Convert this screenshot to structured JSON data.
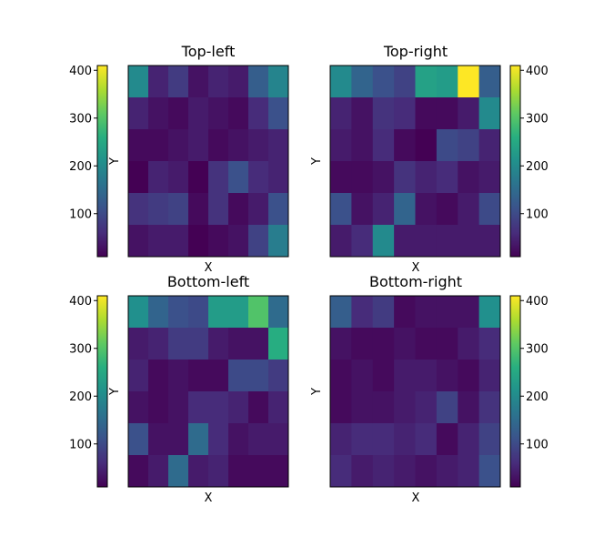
{
  "chart_data": [
    {
      "type": "heatmap",
      "title": "Top-left",
      "xlabel": "X",
      "ylabel": "Y",
      "colorbar_position": "left",
      "colormap": "viridis",
      "clim": [
        10,
        410
      ],
      "colorbar_ticks": [
        100,
        200,
        300,
        400
      ],
      "grid": false,
      "rows": [
        [
          200,
          50,
          80,
          30,
          50,
          40,
          130,
          190
        ],
        [
          50,
          30,
          20,
          40,
          30,
          20,
          60,
          110
        ],
        [
          20,
          20,
          30,
          40,
          20,
          30,
          40,
          50
        ],
        [
          10,
          50,
          40,
          5,
          70,
          110,
          60,
          50
        ],
        [
          70,
          80,
          90,
          20,
          70,
          20,
          40,
          110
        ],
        [
          30,
          40,
          40,
          10,
          20,
          30,
          90,
          180
        ]
      ]
    },
    {
      "type": "heatmap",
      "title": "Top-right",
      "xlabel": "X",
      "ylabel": "Y",
      "colorbar_position": "right",
      "colormap": "viridis",
      "clim": [
        10,
        410
      ],
      "colorbar_ticks": [
        100,
        200,
        300,
        400
      ],
      "grid": false,
      "rows": [
        [
          200,
          140,
          110,
          90,
          240,
          230,
          410,
          130
        ],
        [
          50,
          30,
          70,
          60,
          20,
          20,
          40,
          200
        ],
        [
          40,
          30,
          60,
          20,
          10,
          100,
          90,
          50
        ],
        [
          20,
          20,
          30,
          70,
          50,
          60,
          30,
          40
        ],
        [
          110,
          30,
          50,
          140,
          30,
          20,
          40,
          100
        ],
        [
          40,
          60,
          200,
          40,
          40,
          40,
          40,
          40
        ]
      ]
    },
    {
      "type": "heatmap",
      "title": "Bottom-left",
      "xlabel": "X",
      "ylabel": "Y",
      "colorbar_position": "left",
      "colormap": "viridis",
      "clim": [
        10,
        410
      ],
      "colorbar_ticks": [
        100,
        200,
        300,
        400
      ],
      "grid": false,
      "rows": [
        [
          210,
          140,
          110,
          100,
          230,
          230,
          300,
          150
        ],
        [
          40,
          50,
          80,
          80,
          40,
          30,
          30,
          260
        ],
        [
          50,
          20,
          30,
          20,
          20,
          100,
          100,
          80
        ],
        [
          30,
          20,
          30,
          60,
          60,
          50,
          20,
          50
        ],
        [
          110,
          30,
          30,
          150,
          60,
          30,
          40,
          40
        ],
        [
          20,
          40,
          150,
          40,
          50,
          20,
          20,
          20
        ]
      ]
    },
    {
      "type": "heatmap",
      "title": "Bottom-right",
      "xlabel": "X",
      "ylabel": "Y",
      "colorbar_position": "right",
      "colormap": "viridis",
      "clim": [
        10,
        410
      ],
      "colorbar_ticks": [
        100,
        200,
        300,
        400
      ],
      "grid": false,
      "rows": [
        [
          130,
          60,
          80,
          20,
          30,
          30,
          30,
          210
        ],
        [
          30,
          20,
          20,
          30,
          20,
          20,
          40,
          60
        ],
        [
          20,
          30,
          20,
          40,
          40,
          30,
          20,
          50
        ],
        [
          20,
          30,
          30,
          40,
          50,
          90,
          30,
          70
        ],
        [
          50,
          60,
          60,
          50,
          60,
          20,
          50,
          90
        ],
        [
          60,
          40,
          50,
          40,
          30,
          40,
          50,
          110
        ]
      ]
    }
  ]
}
